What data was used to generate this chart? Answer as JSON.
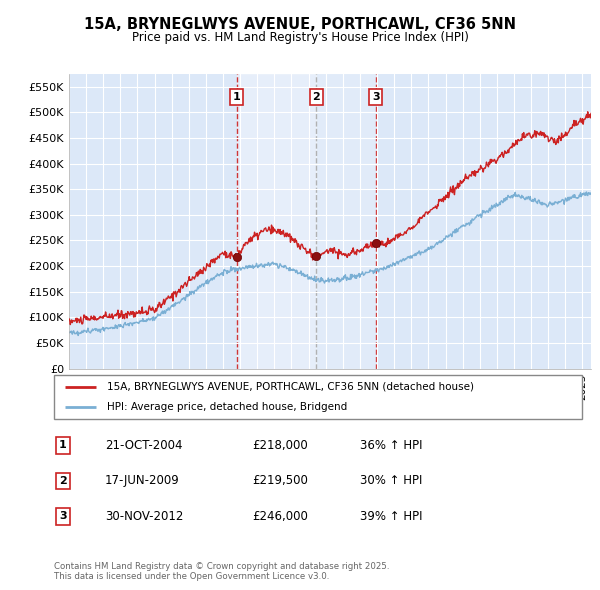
{
  "title_line1": "15A, BRYNEGLWYS AVENUE, PORTHCAWL, CF36 5NN",
  "title_line2": "Price paid vs. HM Land Registry's House Price Index (HPI)",
  "ylim": [
    0,
    575000
  ],
  "yticks": [
    0,
    50000,
    100000,
    150000,
    200000,
    250000,
    300000,
    350000,
    400000,
    450000,
    500000,
    550000
  ],
  "ytick_labels": [
    "£0",
    "£50K",
    "£100K",
    "£150K",
    "£200K",
    "£250K",
    "£300K",
    "£350K",
    "£400K",
    "£450K",
    "£500K",
    "£550K"
  ],
  "plot_bg_color": "#dce8f8",
  "highlight_bg_color": "#c8dff5",
  "grid_color": "#b8cfe8",
  "red_line_color": "#cc2222",
  "blue_line_color": "#7aafd4",
  "sale_markers": [
    {
      "num": 1,
      "date_x": 2004.8,
      "price": 218000,
      "label": "1"
    },
    {
      "num": 2,
      "date_x": 2009.46,
      "price": 219500,
      "label": "2"
    },
    {
      "num": 3,
      "date_x": 2012.92,
      "price": 246000,
      "label": "3"
    }
  ],
  "vline_dates": [
    2004.8,
    2009.46,
    2012.92
  ],
  "vline_color": "#cc2222",
  "vline2_color": "#aaaaaa",
  "legend_entries": [
    "15A, BRYNEGLWYS AVENUE, PORTHCAWL, CF36 5NN (detached house)",
    "HPI: Average price, detached house, Bridgend"
  ],
  "table_rows": [
    {
      "num": 1,
      "date": "21-OCT-2004",
      "price": "£218,000",
      "hpi": "36% ↑ HPI"
    },
    {
      "num": 2,
      "date": "17-JUN-2009",
      "price": "£219,500",
      "hpi": "30% ↑ HPI"
    },
    {
      "num": 3,
      "date": "30-NOV-2012",
      "price": "£246,000",
      "hpi": "39% ↑ HPI"
    }
  ],
  "footer_text": "Contains HM Land Registry data © Crown copyright and database right 2025.\nThis data is licensed under the Open Government Licence v3.0.",
  "xmin": 1995,
  "xmax": 2025.5
}
